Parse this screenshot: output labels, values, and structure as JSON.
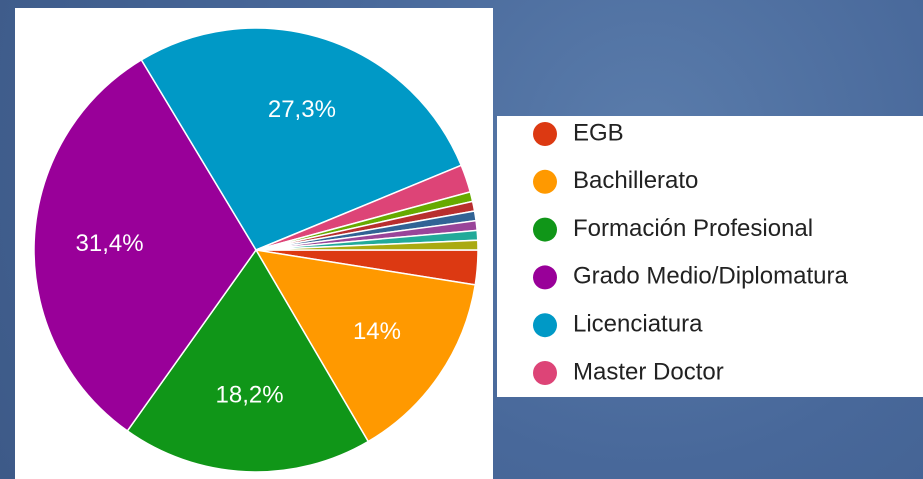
{
  "chart_data": {
    "type": "pie",
    "categories": [
      "EGB",
      "Bachillerato",
      "Formación Profesional",
      "Grado Medio/Diplomatura",
      "Licenciatura",
      "Master Doctor",
      null,
      null,
      null,
      null,
      null,
      null
    ],
    "values": [
      2.5,
      14,
      18.2,
      31.4,
      27.3,
      2,
      0.7,
      0.7,
      0.7,
      0.7,
      0.7,
      0.7
    ],
    "value_labels": [
      null,
      "14%",
      "18,2%",
      "31,4%",
      "27,3%",
      null,
      null,
      null,
      null,
      null,
      null,
      null
    ],
    "colors": [
      "#dc3912",
      "#ff9900",
      "#109618",
      "#990099",
      "#0099c6",
      "#dd4477",
      "#66aa00",
      "#b82e2e",
      "#316395",
      "#994499",
      "#22aa99",
      "#aaaa11"
    ],
    "legend": "right"
  }
}
